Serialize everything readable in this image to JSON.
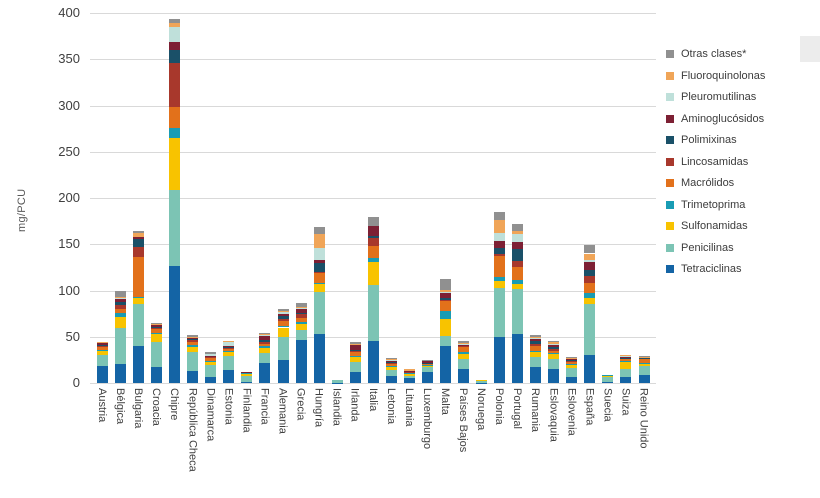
{
  "chart_data": {
    "type": "bar",
    "stacked": true,
    "title": "",
    "xlabel": "",
    "ylabel": "mg/PCU",
    "ylim": [
      0,
      400
    ],
    "yticks": [
      0,
      50,
      100,
      150,
      200,
      250,
      300,
      350,
      400
    ],
    "grid": true,
    "legend_position": "right",
    "categories": [
      "Austria",
      "Bélgica",
      "Bulgaria",
      "Croacia",
      "Chipre",
      "República Checa",
      "Dinamarca",
      "Estonia",
      "Finlandia",
      "Francia",
      "Alemania",
      "Grecia",
      "Hungría",
      "Islandia",
      "Irlanda",
      "Italia",
      "Letonia",
      "Lituania",
      "Luxemburgo",
      "Malta",
      "Países Bajos",
      "Noruega",
      "Polonia",
      "Portugal",
      "Rumania",
      "Eslovaquia",
      "Eslovenia",
      "España",
      "Suecia",
      "Suiza",
      "Reino Unido"
    ],
    "series": [
      {
        "name": "Tetraciclinas",
        "color": "#1464a5",
        "values": [
          18,
          21,
          40,
          17,
          126,
          13,
          6,
          14,
          1.5,
          22,
          25,
          46,
          53,
          0.5,
          12,
          45,
          8,
          5,
          12,
          40,
          15,
          0.2,
          50,
          53,
          17,
          15,
          7,
          30,
          1,
          6,
          9
        ]
      },
      {
        "name": "Penicilinas",
        "color": "#7cc4b4",
        "values": [
          12.5,
          38,
          45,
          27,
          83,
          20,
          14,
          15,
          6.5,
          10,
          25,
          11,
          45,
          2.5,
          11,
          61,
          6,
          3,
          5,
          11,
          11,
          2.5,
          53,
          49,
          11,
          11,
          9,
          55,
          6,
          9,
          9
        ]
      },
      {
        "name": "Sulfonamidas",
        "color": "#f8c300",
        "values": [
          4,
          12.5,
          7,
          9,
          56,
          6,
          2.5,
          5,
          2.5,
          6,
          10,
          7,
          9.5,
          0,
          5,
          25,
          3.5,
          2,
          2,
          18,
          5.5,
          0.3,
          7,
          5.5,
          5,
          5.5,
          3,
          7,
          1.5,
          8,
          2.5
        ]
      },
      {
        "name": "Trimetoprima",
        "color": "#199cb4",
        "values": [
          1,
          4,
          1,
          1,
          11,
          2,
          1,
          1,
          0.5,
          2,
          2,
          1.5,
          1,
          0,
          1,
          4,
          1,
          0.5,
          0.5,
          9,
          1.5,
          0,
          5,
          3.5,
          1.5,
          1,
          2,
          5,
          0.5,
          1,
          1.5
        ]
      },
      {
        "name": "Macrólidos",
        "color": "#e2711b",
        "values": [
          4,
          4.5,
          43,
          5,
          22,
          3,
          3.5,
          2,
          0.5,
          2.5,
          5,
          5,
          11,
          0,
          5,
          13,
          3,
          1,
          1.5,
          11,
          7,
          0,
          22,
          14,
          5.5,
          2,
          2,
          11,
          0,
          2,
          3.5
        ]
      },
      {
        "name": "Lincosamidas",
        "color": "#a8382c",
        "values": [
          1,
          4,
          11,
          1,
          48,
          2,
          1,
          1,
          0,
          1.5,
          2,
          4,
          1,
          0,
          1.5,
          9,
          0.5,
          0.5,
          0.5,
          1,
          0.5,
          0,
          2,
          7,
          2,
          2,
          0.5,
          8,
          0,
          0.5,
          1
        ]
      },
      {
        "name": "Polimixinas",
        "color": "#1a5068",
        "values": [
          0.5,
          3.5,
          9,
          1,
          14,
          1.5,
          1,
          0.5,
          0,
          2,
          3,
          1.5,
          9,
          0,
          0.5,
          2,
          0.5,
          0.5,
          0.5,
          2,
          0.5,
          0,
          7,
          13,
          3,
          2.5,
          1,
          6,
          0,
          0.5,
          0.5
        ]
      },
      {
        "name": "Aminoglucósidos",
        "color": "#7d2034",
        "values": [
          2.5,
          3.5,
          2,
          2,
          9,
          2,
          0.5,
          2,
          0.5,
          5,
          3,
          4.5,
          3.5,
          0,
          5,
          11,
          2,
          1,
          2.5,
          5,
          0.5,
          0,
          7,
          7,
          3,
          2,
          1.5,
          9,
          0,
          2,
          1
        ]
      },
      {
        "name": "Pleuromutilinas",
        "color": "#bfe0da",
        "values": [
          0,
          1.5,
          0,
          0.5,
          16,
          0,
          1.5,
          4,
          0,
          0.5,
          2,
          0.5,
          13,
          0,
          1,
          0,
          0.5,
          0,
          0,
          1,
          1,
          0,
          9,
          9,
          0.5,
          1,
          0.5,
          2,
          0,
          0.5,
          0
        ]
      },
      {
        "name": "Fluoroquinolonas",
        "color": "#f0a558",
        "values": [
          0.5,
          0.5,
          4,
          0.5,
          4,
          0.5,
          0,
          0.5,
          0,
          1,
          1,
          1.5,
          15,
          0,
          0.5,
          0,
          0.5,
          1.5,
          0,
          3,
          0.5,
          0,
          14,
          3,
          1,
          2.5,
          1,
          7,
          0,
          0.5,
          0.5
        ]
      },
      {
        "name": "Otras clases*",
        "color": "#909090",
        "values": [
          0,
          6,
          2,
          1,
          4,
          2,
          2,
          0,
          0,
          1.5,
          2,
          4,
          8,
          0,
          2,
          10,
          1.5,
          0,
          0.5,
          11,
          2.5,
          0,
          9,
          8,
          2.5,
          0.5,
          0.5,
          9,
          0,
          0,
          0.5
        ]
      }
    ]
  },
  "legend": {
    "order": "top-to-bottom, reverse of stacking",
    "items": [
      "Otras clases*",
      "Fluoroquinolonas",
      "Pleuromutilinas",
      "Aminoglucósidos",
      "Polimixinas",
      "Lincosamidas",
      "Macrólidos",
      "Trimetoprima",
      "Sulfonamidas",
      "Penicilinas",
      "Tetraciclinas"
    ]
  }
}
